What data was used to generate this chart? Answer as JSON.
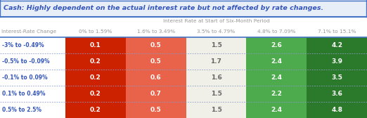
{
  "title": "Cash: Highly dependent on the actual interest rate but not affected by rate changes.",
  "col_header_top": "Interest Rate at Start of Six-Month Period",
  "col_headers": [
    "0% to 1.59%",
    "1.6% to 3.49%",
    "3.5% to 4.79%",
    "4.8% to 7.09%",
    "7.1% to 15.1%"
  ],
  "row_headers": [
    "-3% to -0.49%",
    "-0.5% to -0.09%",
    "-0.1% to 0.09%",
    "0.1% to 0.49%",
    "0.5% to 2.5%"
  ],
  "row_header_label": "Interest-Rate Change",
  "values": [
    [
      0.1,
      0.5,
      1.5,
      2.6,
      4.2
    ],
    [
      0.2,
      0.5,
      1.7,
      2.4,
      3.9
    ],
    [
      0.2,
      0.6,
      1.6,
      2.4,
      3.5
    ],
    [
      0.2,
      0.7,
      1.5,
      2.2,
      3.6
    ],
    [
      0.2,
      0.5,
      1.5,
      2.4,
      4.8
    ]
  ],
  "cell_colors": [
    [
      "#cc2200",
      "#e8634a",
      "#f0f0e8",
      "#4daa4d",
      "#2b7a2b"
    ],
    [
      "#cc2200",
      "#e8634a",
      "#f0f0e8",
      "#4daa4d",
      "#2b7a2b"
    ],
    [
      "#cc2200",
      "#e8634a",
      "#f0f0e8",
      "#4daa4d",
      "#2b7a2b"
    ],
    [
      "#cc2200",
      "#e8634a",
      "#f0f0e8",
      "#4daa4d",
      "#2b7a2b"
    ],
    [
      "#cc2200",
      "#e8634a",
      "#f0f0e8",
      "#4daa4d",
      "#2b7a2b"
    ]
  ],
  "text_colors": [
    [
      "#ffffff",
      "#ffffff",
      "#666666",
      "#ffffff",
      "#ffffff"
    ],
    [
      "#ffffff",
      "#ffffff",
      "#666666",
      "#ffffff",
      "#ffffff"
    ],
    [
      "#ffffff",
      "#ffffff",
      "#666666",
      "#ffffff",
      "#ffffff"
    ],
    [
      "#ffffff",
      "#ffffff",
      "#666666",
      "#ffffff",
      "#ffffff"
    ],
    [
      "#ffffff",
      "#ffffff",
      "#666666",
      "#ffffff",
      "#ffffff"
    ]
  ],
  "bg_color": "#ffffff",
  "title_bg_color": "#e8eef8",
  "title_color": "#3355bb",
  "header_color": "#999999",
  "row_label_color": "#3355bb",
  "border_color": "#4472c4",
  "divider_color": "#8899cc",
  "title_fontsize": 6.8,
  "header_fontsize": 5.3,
  "data_fontsize": 6.5,
  "row_label_fontsize": 5.5
}
